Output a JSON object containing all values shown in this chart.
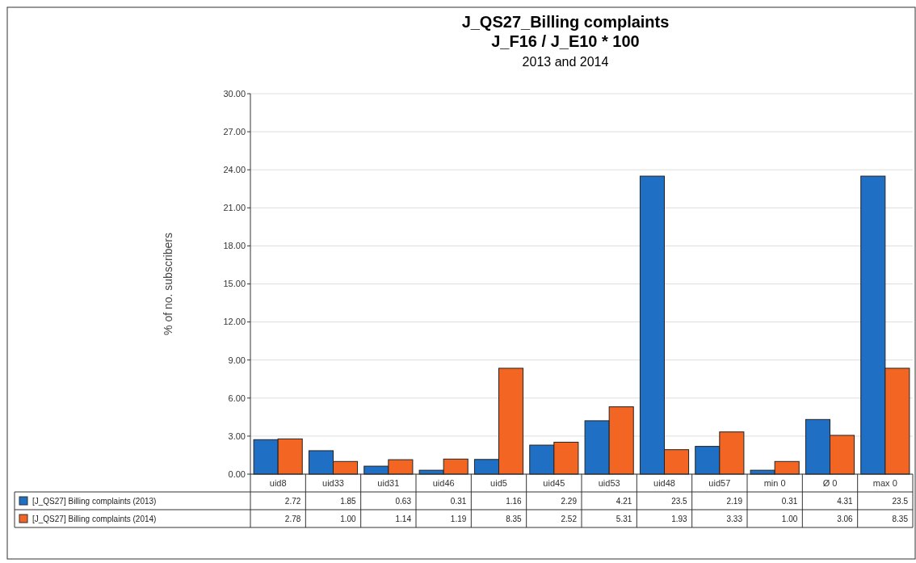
{
  "chart_data": {
    "type": "bar",
    "title": "J_QS27_Billing complaints",
    "subtitle": "J_F16 / J_E10 * 100\n2013 and 2014",
    "ylabel": "% of no. subscribers",
    "categories": [
      "uid8",
      "uid33",
      "uid31",
      "uid46",
      "uid5",
      "uid45",
      "uid53",
      "uid48",
      "uid57",
      "min 0",
      "Ø 0",
      "max 0"
    ],
    "series": [
      {
        "name": "[J_QS27] Billing complaints (2013)",
        "color": "#1f6fc5",
        "values": [
          2.72,
          1.85,
          0.63,
          0.31,
          1.16,
          2.29,
          4.21,
          23.5,
          2.19,
          0.31,
          4.31,
          23.5
        ],
        "value_labels": [
          "2.72",
          "1.85",
          "0.63",
          "0.31",
          "1.16",
          "2.29",
          "4.21",
          "23.5",
          "2.19",
          "0.31",
          "4.31",
          "23.5"
        ]
      },
      {
        "name": "[J_QS27] Billing complaints (2014)",
        "color": "#f26522",
        "values": [
          2.78,
          1.0,
          1.14,
          1.19,
          8.35,
          2.52,
          5.31,
          1.93,
          3.33,
          1.0,
          3.06,
          8.35
        ],
        "value_labels": [
          "2.78",
          "1.00",
          "1.14",
          "1.19",
          "8.35",
          "2.52",
          "5.31",
          "1.93",
          "3.33",
          "1.00",
          "3.06",
          "8.35"
        ]
      }
    ],
    "ylim": [
      0,
      30
    ],
    "yticks": [
      {
        "value": 0,
        "label": "0.00"
      },
      {
        "value": 3,
        "label": "3.00"
      },
      {
        "value": 6,
        "label": "6.00"
      },
      {
        "value": 9,
        "label": "9.00"
      },
      {
        "value": 12,
        "label": "12.00"
      },
      {
        "value": 15,
        "label": "15.00"
      },
      {
        "value": 18,
        "label": "18.00"
      },
      {
        "value": 21,
        "label": "21.00"
      },
      {
        "value": 24,
        "label": "24.00"
      },
      {
        "value": 27,
        "label": "27.00"
      },
      {
        "value": 30,
        "label": "30.00"
      }
    ],
    "grid": "y",
    "legend": "bottom left"
  }
}
